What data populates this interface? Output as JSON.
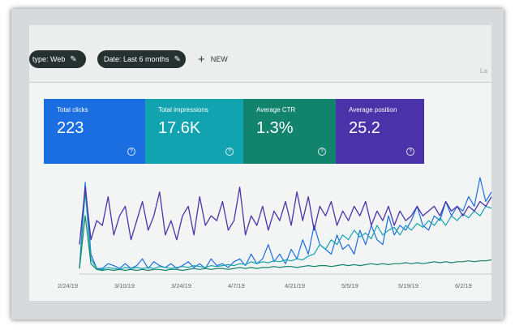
{
  "filters": {
    "type_chip": "type: Web",
    "date_chip": "Date: Last 6 months",
    "new_label": "NEW",
    "cut_text": "La"
  },
  "colors": {
    "clicks": "#1a6ee0",
    "impressions": "#12a3b0",
    "ctr": "#12846e",
    "position": "#4a33a8"
  },
  "metrics": [
    {
      "label": "Total clicks",
      "value": "223",
      "help": "?"
    },
    {
      "label": "Total impressions",
      "value": "17.6K",
      "help": "?"
    },
    {
      "label": "Average CTR",
      "value": "1.3%",
      "help": "?"
    },
    {
      "label": "Average position",
      "value": "25.2",
      "help": "?"
    }
  ],
  "chart_data": {
    "type": "line",
    "x_tick_labels": [
      "2/24/19",
      "3/10/19",
      "3/24/19",
      "4/7/19",
      "4/21/19",
      "5/5/19",
      "5/19/19",
      "6/2/19"
    ],
    "series": [
      {
        "values": [
          0.05,
          0.95,
          0.2,
          0.05,
          0.05,
          0.1,
          0.08,
          0.05,
          0.1,
          0.05,
          0.08,
          0.15,
          0.05,
          0.12,
          0.08,
          0.06,
          0.1,
          0.05,
          0.08,
          0.12,
          0.06,
          0.1,
          0.05,
          0.15,
          0.08,
          0.1,
          0.06,
          0.12,
          0.15,
          0.08,
          0.2,
          0.1,
          0.15,
          0.3,
          0.12,
          0.2,
          0.1,
          0.25,
          0.15,
          0.35,
          0.2,
          0.5,
          0.3,
          0.25,
          0.2,
          0.4,
          0.25,
          0.3,
          0.2,
          0.45,
          0.3,
          0.5,
          0.35,
          0.3,
          0.6,
          0.4,
          0.5,
          0.45,
          0.55,
          0.7,
          0.5,
          0.45,
          0.6,
          0.55,
          0.75,
          0.6,
          0.7,
          0.65,
          0.8,
          0.7,
          1.0,
          0.75,
          0.85
        ]
      },
      {
        "values": [
          0.05,
          0.85,
          0.15,
          0.05,
          0.04,
          0.06,
          0.05,
          0.04,
          0.06,
          0.05,
          0.06,
          0.05,
          0.06,
          0.05,
          0.07,
          0.06,
          0.05,
          0.06,
          0.07,
          0.06,
          0.08,
          0.07,
          0.06,
          0.08,
          0.07,
          0.08,
          0.09,
          0.08,
          0.1,
          0.09,
          0.12,
          0.1,
          0.12,
          0.11,
          0.13,
          0.12,
          0.14,
          0.13,
          0.15,
          0.14,
          0.18,
          0.2,
          0.3,
          0.25,
          0.35,
          0.3,
          0.4,
          0.35,
          0.45,
          0.38,
          0.42,
          0.36,
          0.5,
          0.4,
          0.45,
          0.48,
          0.4,
          0.5,
          0.45,
          0.52,
          0.48,
          0.55,
          0.5,
          0.58,
          0.5,
          0.6,
          0.55,
          0.62,
          0.58,
          0.65,
          0.6,
          0.7,
          0.68
        ]
      },
      {
        "values": [
          0.05,
          0.6,
          0.1,
          0.04,
          0.03,
          0.04,
          0.03,
          0.04,
          0.03,
          0.04,
          0.03,
          0.04,
          0.03,
          0.04,
          0.04,
          0.03,
          0.04,
          0.04,
          0.03,
          0.04,
          0.05,
          0.04,
          0.05,
          0.04,
          0.05,
          0.05,
          0.04,
          0.05,
          0.06,
          0.05,
          0.06,
          0.05,
          0.06,
          0.06,
          0.07,
          0.06,
          0.07,
          0.07,
          0.06,
          0.07,
          0.08,
          0.07,
          0.08,
          0.08,
          0.07,
          0.08,
          0.09,
          0.08,
          0.09,
          0.08,
          0.09,
          0.1,
          0.09,
          0.1,
          0.09,
          0.1,
          0.1,
          0.11,
          0.1,
          0.11,
          0.1,
          0.11,
          0.12,
          0.11,
          0.12,
          0.11,
          0.12,
          0.12,
          0.13,
          0.12,
          0.13,
          0.13,
          0.14
        ]
      },
      {
        "values": [
          0.3,
          0.9,
          0.35,
          0.55,
          0.5,
          0.8,
          0.4,
          0.6,
          0.7,
          0.35,
          0.55,
          0.75,
          0.45,
          0.6,
          0.85,
          0.4,
          0.55,
          0.35,
          0.6,
          0.7,
          0.4,
          0.8,
          0.5,
          0.6,
          0.55,
          0.75,
          0.45,
          0.55,
          0.9,
          0.4,
          0.6,
          0.5,
          0.7,
          0.45,
          0.65,
          0.55,
          0.75,
          0.5,
          0.85,
          0.55,
          0.8,
          0.45,
          0.7,
          0.6,
          0.75,
          0.5,
          0.65,
          0.55,
          0.7,
          0.6,
          0.75,
          0.5,
          0.65,
          0.55,
          0.7,
          0.5,
          0.65,
          0.55,
          0.6,
          0.7,
          0.6,
          0.65,
          0.7,
          0.6,
          0.75,
          0.65,
          0.7,
          0.6,
          0.7,
          0.65,
          0.75,
          0.7,
          0.8
        ]
      }
    ]
  }
}
